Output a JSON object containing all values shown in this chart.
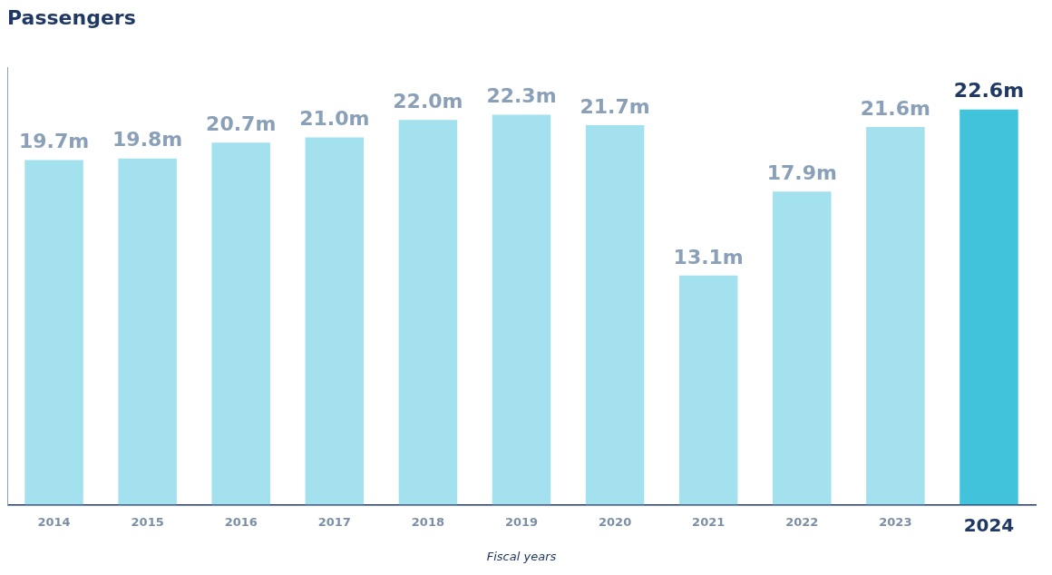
{
  "chart_data": {
    "type": "bar",
    "title": "Passengers",
    "xlabel": "Fiscal years",
    "categories": [
      "2014",
      "2015",
      "2016",
      "2017",
      "2018",
      "2019",
      "2020",
      "2021",
      "2022",
      "2023",
      "2024"
    ],
    "values": [
      19.7,
      19.8,
      20.7,
      21.0,
      22.0,
      22.3,
      21.7,
      13.1,
      17.9,
      21.6,
      22.6
    ],
    "colors": [
      "#a2e1ed",
      "#a2e1ed",
      "#a2e1ed",
      "#a2e1ed",
      "#a2e1ed",
      "#a2e1ed",
      "#a2e1ed",
      "#a2e1ed",
      "#a2e1ed",
      "#a2e1ed",
      "#42c3dc"
    ],
    "value_labels": [
      "19.7m",
      "19.8m",
      "20.7m",
      "21.0m",
      "22.0m",
      "22.3m",
      "21.7m",
      "13.1m",
      "17.9m",
      "21.6m",
      "22.6m"
    ],
    "grid": false,
    "legend": false
  }
}
